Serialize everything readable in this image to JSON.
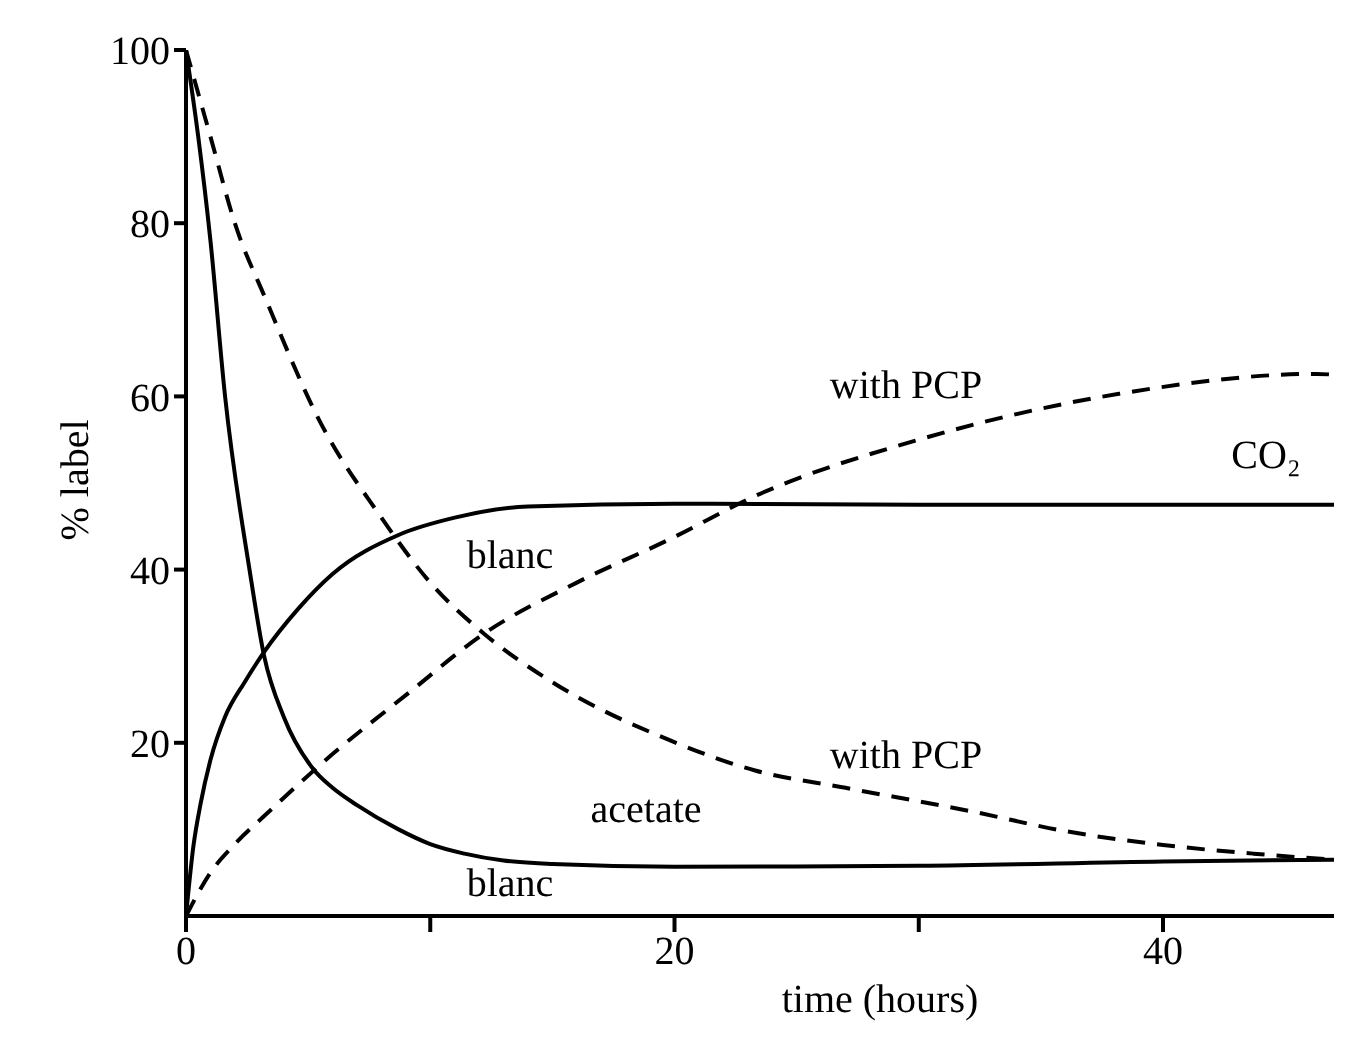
{
  "chart_data": {
    "type": "line",
    "xlabel": "time (hours)",
    "ylabel": "% label",
    "xlim": [
      0,
      47
    ],
    "ylim": [
      0,
      100
    ],
    "xticks": [
      0,
      {
        "value": 10,
        "label": null
      },
      20,
      {
        "value": 30,
        "label": null
      },
      40
    ],
    "yticks": [
      20,
      40,
      60,
      80,
      100
    ],
    "grid": false,
    "legend": false,
    "marker": "none",
    "series": [
      {
        "color": "#000000",
        "line_style": "solid",
        "x": [
          0,
          0.5,
          1,
          1.6,
          2.6,
          3.2,
          4,
          5.2,
          6,
          7,
          8.7,
          10,
          11.4,
          13,
          15,
          20,
          30,
          40,
          47
        ],
        "values": [
          100,
          90,
          78,
          60,
          40,
          30,
          23,
          17,
          14.8,
          12.8,
          10,
          8.3,
          7.2,
          6.4,
          6,
          5.7,
          5.8,
          6.3,
          6.5
        ]
      },
      {
        "color": "#000000",
        "line_style": "solid",
        "x": [
          0,
          0.3,
          0.6,
          1,
          1.6,
          2.4,
          3.2,
          4.6,
          6,
          8.7,
          11,
          14,
          20,
          30,
          47
        ],
        "values": [
          0,
          8,
          13,
          18,
          23,
          27,
          30.5,
          35.5,
          39.5,
          44,
          46,
          47.3,
          47.6,
          47.5,
          47.5
        ]
      },
      {
        "color": "#000000",
        "line_style": "dashed",
        "x": [
          0,
          1,
          2,
          3.3,
          5.5,
          7.9,
          10,
          12.2,
          15,
          19.8,
          23.3,
          27,
          32.3,
          36,
          40,
          43.7,
          47
        ],
        "values": [
          100,
          90,
          80,
          71,
          57,
          46.4,
          38.5,
          32.6,
          27,
          20.3,
          16.8,
          14.8,
          12,
          9.8,
          8.2,
          7.2,
          6.5
        ]
      },
      {
        "color": "#000000",
        "line_style": "dashed",
        "x": [
          0,
          1,
          2,
          3.3,
          6,
          9,
          12.2,
          16,
          19.8,
          23.3,
          30,
          38.2,
          46.3,
          47
        ],
        "values": [
          0,
          5,
          8.3,
          11.8,
          18.7,
          25.5,
          32.6,
          38.5,
          43.5,
          48.5,
          55,
          60.3,
          62.6,
          62.5
        ]
      }
    ],
    "annotations": [
      "with PCP",
      "CO₂",
      "blanc",
      "with PCP",
      "acetate",
      "blanc"
    ]
  }
}
